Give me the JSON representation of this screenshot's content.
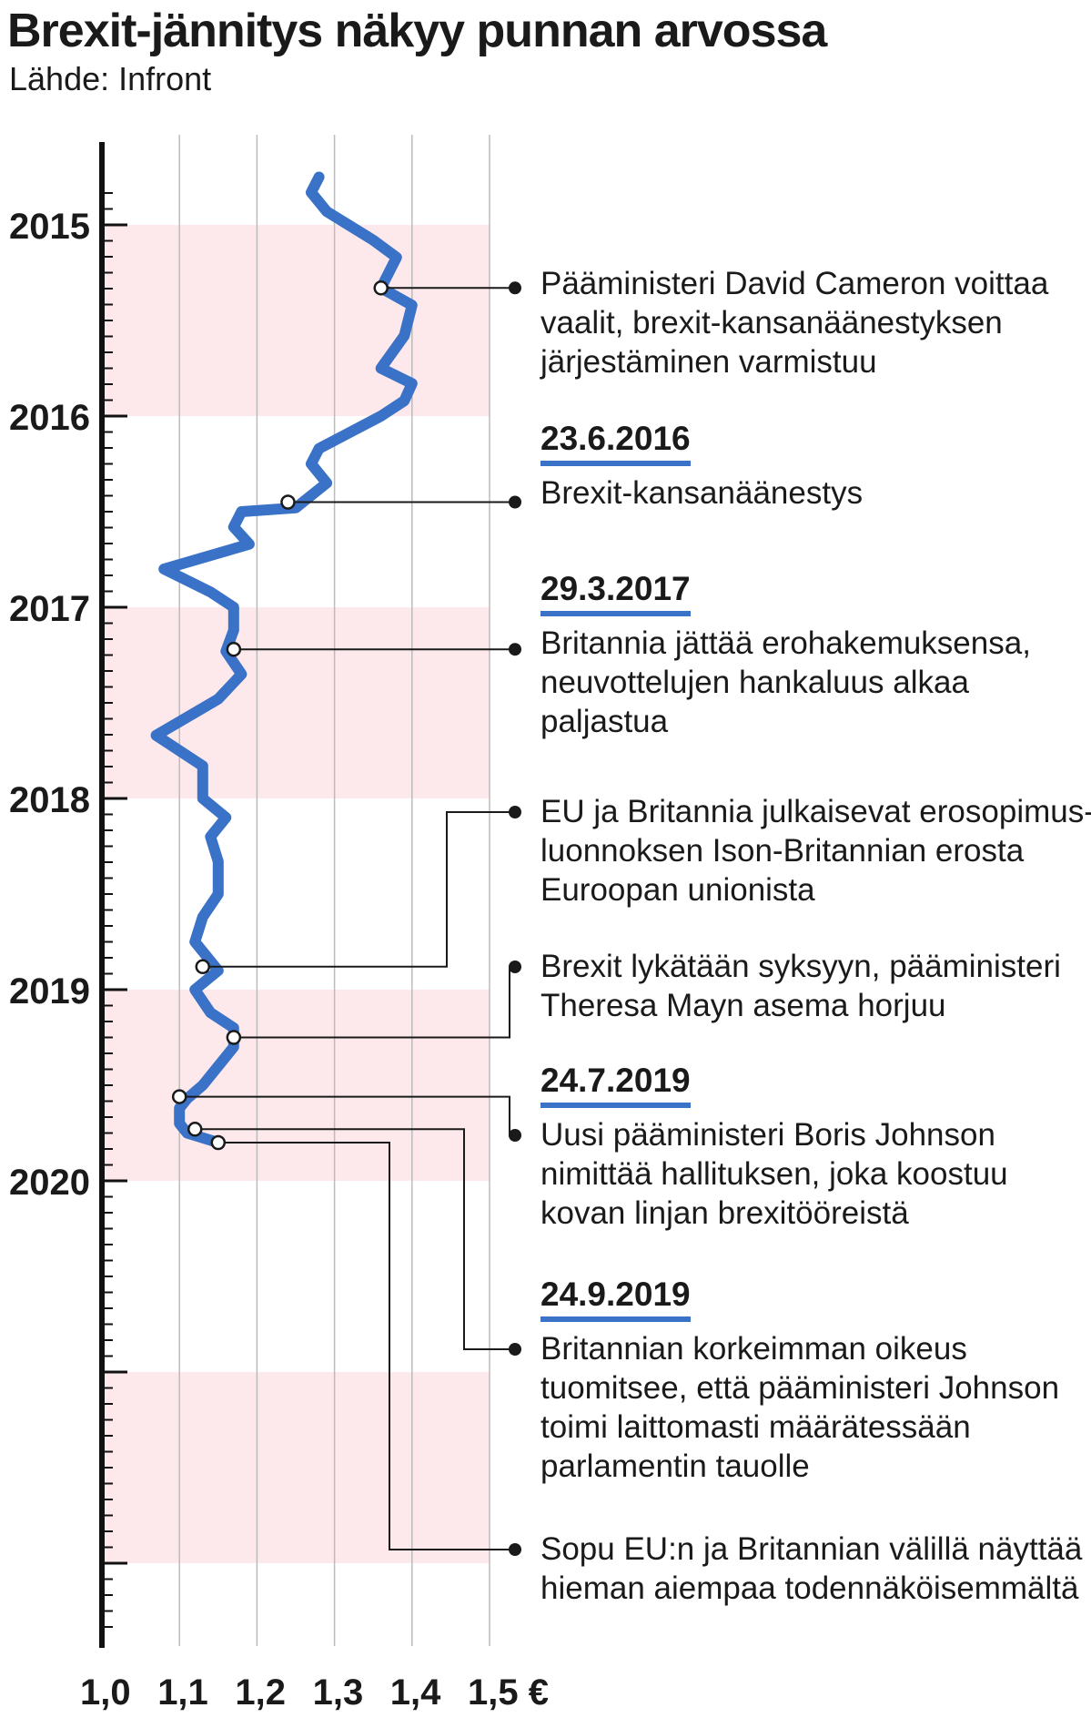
{
  "chart_data": {
    "type": "line",
    "title": "Brexit-jännitys näkyy punnan arvossa",
    "source": "Lähde: Infront",
    "orientation": "vertical-time",
    "x_axis": {
      "ticks": [
        "1,0",
        "1,1",
        "1,2",
        "1,3",
        "1,4",
        "1,5 €"
      ],
      "tick_values": [
        1.0,
        1.1,
        1.2,
        1.3,
        1.4,
        1.5
      ],
      "range": [
        1.0,
        1.5
      ]
    },
    "y_axis": {
      "ticks": [
        "2015",
        "2016",
        "2017",
        "2018",
        "2019",
        "2020"
      ],
      "tick_values": [
        2015,
        2016,
        2017,
        2018,
        2019,
        2020
      ],
      "range": [
        2014.8,
        2022.4
      ]
    },
    "series": [
      {
        "values": [
          [
            2014.75,
            1.28
          ],
          [
            2014.83,
            1.27
          ],
          [
            2014.93,
            1.29
          ],
          [
            2015.08,
            1.35
          ],
          [
            2015.17,
            1.38
          ],
          [
            2015.33,
            1.36
          ],
          [
            2015.42,
            1.4
          ],
          [
            2015.58,
            1.39
          ],
          [
            2015.75,
            1.36
          ],
          [
            2015.83,
            1.4
          ],
          [
            2015.92,
            1.39
          ],
          [
            2016.0,
            1.36
          ],
          [
            2016.17,
            1.28
          ],
          [
            2016.25,
            1.27
          ],
          [
            2016.35,
            1.29
          ],
          [
            2016.48,
            1.25
          ],
          [
            2016.5,
            1.18
          ],
          [
            2016.58,
            1.17
          ],
          [
            2016.67,
            1.19
          ],
          [
            2016.8,
            1.08
          ],
          [
            2016.92,
            1.14
          ],
          [
            2017.0,
            1.17
          ],
          [
            2017.12,
            1.17
          ],
          [
            2017.23,
            1.16
          ],
          [
            2017.35,
            1.18
          ],
          [
            2017.48,
            1.15
          ],
          [
            2017.67,
            1.07
          ],
          [
            2017.83,
            1.13
          ],
          [
            2018.0,
            1.13
          ],
          [
            2018.1,
            1.16
          ],
          [
            2018.2,
            1.14
          ],
          [
            2018.33,
            1.15
          ],
          [
            2018.5,
            1.15
          ],
          [
            2018.62,
            1.13
          ],
          [
            2018.75,
            1.12
          ],
          [
            2018.9,
            1.15
          ],
          [
            2019.0,
            1.12
          ],
          [
            2019.12,
            1.14
          ],
          [
            2019.2,
            1.17
          ],
          [
            2019.3,
            1.17
          ],
          [
            2019.4,
            1.15
          ],
          [
            2019.5,
            1.13
          ],
          [
            2019.57,
            1.11
          ],
          [
            2019.62,
            1.1
          ],
          [
            2019.7,
            1.1
          ],
          [
            2019.75,
            1.11
          ],
          [
            2019.8,
            1.15
          ]
        ]
      }
    ],
    "shaded_years": [
      2015,
      2017,
      2019,
      2021
    ],
    "annotations": [
      {
        "date_label": "",
        "lines": [
          "Pääministeri David Cameron voittaa",
          "vaalit, brexit-kansanäänestyksen",
          "järjestäminen varmistuu"
        ],
        "point": [
          2015.33,
          1.36
        ]
      },
      {
        "date_label": "23.6.2016",
        "lines": [
          "Brexit-kansanäänestys"
        ],
        "point": [
          2016.45,
          1.24
        ]
      },
      {
        "date_label": "29.3.2017",
        "lines": [
          "Britannia jättää erohakemuksensa,",
          "neuvottelujen hankaluus alkaa",
          "paljastua"
        ],
        "point": [
          2017.22,
          1.17
        ]
      },
      {
        "date_label": "",
        "lines": [
          "EU ja Britannia julkaisevat erosopimus-",
          "luonnoksen Ison-Britannian erosta",
          "Euroopan unionista"
        ],
        "point": [
          2018.88,
          1.13
        ]
      },
      {
        "date_label": "",
        "lines": [
          "Brexit lykätään syksyyn, pääministeri",
          "Theresa Mayn asema horjuu"
        ],
        "point": [
          2019.25,
          1.17
        ]
      },
      {
        "date_label": "24.7.2019",
        "lines": [
          "Uusi pääministeri Boris Johnson",
          "nimittää hallituksen, joka koostuu",
          "kovan linjan brexitööreistä"
        ],
        "point": [
          2019.56,
          1.1
        ]
      },
      {
        "date_label": "24.9.2019",
        "lines": [
          "Britannian korkeimman oikeus",
          "tuomitsee, että pääministeri Johnson",
          "toimi laittomasti määrätessään",
          "parlamentin tauolle"
        ],
        "point": [
          2019.73,
          1.12
        ]
      },
      {
        "date_label": "",
        "lines": [
          "Sopu EU:n ja Britannian välillä näyttää",
          "hieman aiempaa todennäköisemmältä"
        ],
        "point": [
          2019.8,
          1.15
        ]
      }
    ],
    "colors": {
      "line": "#3a72c8",
      "band": "#fde9ec",
      "axis": "#111111",
      "grid": "#bbbbbb"
    },
    "grid": true,
    "legend": "none"
  }
}
